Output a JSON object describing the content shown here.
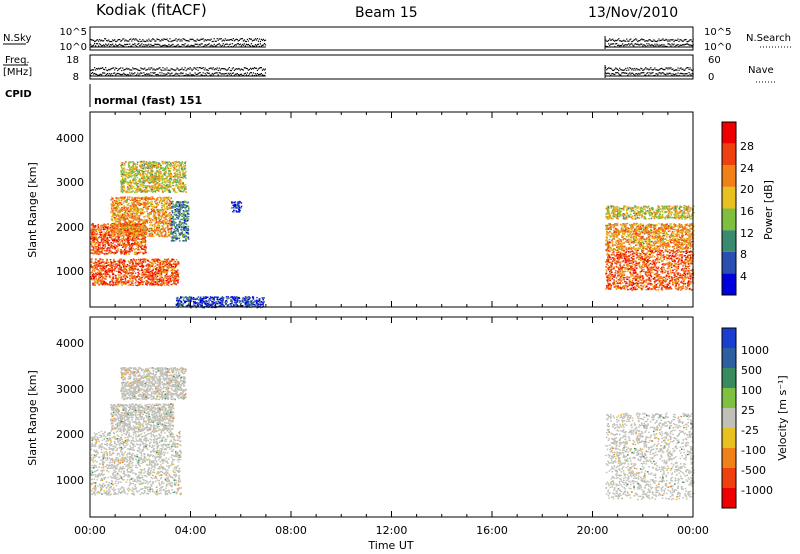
{
  "header": {
    "station": "Kodiak (fitACF)",
    "beam": "Beam 15",
    "date": "13/Nov/2010"
  },
  "panels": {
    "nsky_label": "N.Sky",
    "nsearch_label": "N.Search",
    "nsky_ticks": [
      "10^5",
      "10^0"
    ],
    "nsearch_ticks": [
      "10^5",
      "10^0"
    ],
    "freq_label_1": "Freq.",
    "freq_label_2": "[MHz]",
    "freq_ticks": [
      "18",
      "8"
    ],
    "nave_label": "Nave",
    "nave_ticks": [
      "60",
      "0"
    ],
    "cpid_label": "CPID",
    "cpid_text": "normal (fast) 151"
  },
  "power_panel": {
    "ylabel": "Slant Range [km]",
    "yticks": [
      "1000",
      "2000",
      "3000",
      "4000"
    ],
    "colorbar_label": "Power [dB]",
    "colorbar_ticks": [
      "4",
      "8",
      "12",
      "16",
      "20",
      "24",
      "28"
    ],
    "colors": [
      "#0000dd",
      "#2a4fb0",
      "#3a8a70",
      "#7fbf3f",
      "#e8c020",
      "#f08018",
      "#f04010",
      "#ee0000"
    ]
  },
  "velocity_panel": {
    "ylabel": "Slant Range [km]",
    "yticks": [
      "1000",
      "2000",
      "3000",
      "4000"
    ],
    "colorbar_label": "Velocity [m s⁻¹]",
    "colorbar_ticks": [
      "1000",
      "500",
      "100",
      "25",
      "-25",
      "-100",
      "-500",
      "-1000"
    ],
    "colors": [
      "#1a3fd0",
      "#2e5fa0",
      "#3a8a60",
      "#80c040",
      "#c0c0b8",
      "#e8c020",
      "#f08018",
      "#f04010",
      "#ee0000"
    ]
  },
  "xaxis": {
    "label": "Time UT",
    "ticks": [
      "00:00",
      "04:00",
      "08:00",
      "12:00",
      "16:00",
      "20:00",
      "00:00"
    ]
  },
  "chart_data": [
    {
      "type": "heatmap",
      "name": "power",
      "xlabel": "Time UT",
      "ylabel": "Slant Range [km]",
      "xlim": [
        0,
        24
      ],
      "ylim": [
        200,
        4600
      ],
      "colorbar": {
        "label": "Power [dB]",
        "range": [
          0,
          32
        ]
      },
      "regions": [
        {
          "t0": 0.0,
          "t1": 3.5,
          "r0": 700,
          "r1": 1300,
          "level": 28
        },
        {
          "t0": 0.0,
          "t1": 2.2,
          "r0": 1400,
          "r1": 2100,
          "level": 26
        },
        {
          "t0": 0.8,
          "t1": 3.2,
          "r0": 1800,
          "r1": 2700,
          "level": 22
        },
        {
          "t0": 1.2,
          "t1": 3.8,
          "r0": 2800,
          "r1": 3500,
          "level": 18
        },
        {
          "t0": 3.2,
          "t1": 3.9,
          "r0": 1700,
          "r1": 2600,
          "level": 10
        },
        {
          "t0": 3.4,
          "t1": 6.9,
          "r0": 200,
          "r1": 450,
          "level": 6
        },
        {
          "t0": 5.6,
          "t1": 6.0,
          "r0": 2350,
          "r1": 2600,
          "level": 6
        },
        {
          "t0": 20.5,
          "t1": 24.0,
          "r0": 600,
          "r1": 1500,
          "level": 28
        },
        {
          "t0": 20.5,
          "t1": 24.0,
          "r0": 1500,
          "r1": 2100,
          "level": 24
        },
        {
          "t0": 20.5,
          "t1": 24.0,
          "r0": 2200,
          "r1": 2500,
          "level": 18
        }
      ]
    },
    {
      "type": "heatmap",
      "name": "velocity",
      "xlabel": "Time UT",
      "ylabel": "Slant Range [km]",
      "xlim": [
        0,
        24
      ],
      "ylim": [
        200,
        4600
      ],
      "colorbar": {
        "label": "Velocity [m s⁻¹]",
        "range": [
          -1000,
          1000
        ]
      },
      "regions": [
        {
          "t0": 0.0,
          "t1": 3.6,
          "r0": 700,
          "r1": 2100,
          "level": 0
        },
        {
          "t0": 0.8,
          "t1": 3.3,
          "r0": 2100,
          "r1": 2700,
          "level": 0
        },
        {
          "t0": 1.2,
          "t1": 3.8,
          "r0": 2800,
          "r1": 3500,
          "level": 0
        },
        {
          "t0": 20.5,
          "t1": 24.0,
          "r0": 600,
          "r1": 2500,
          "level": 0
        }
      ]
    }
  ]
}
